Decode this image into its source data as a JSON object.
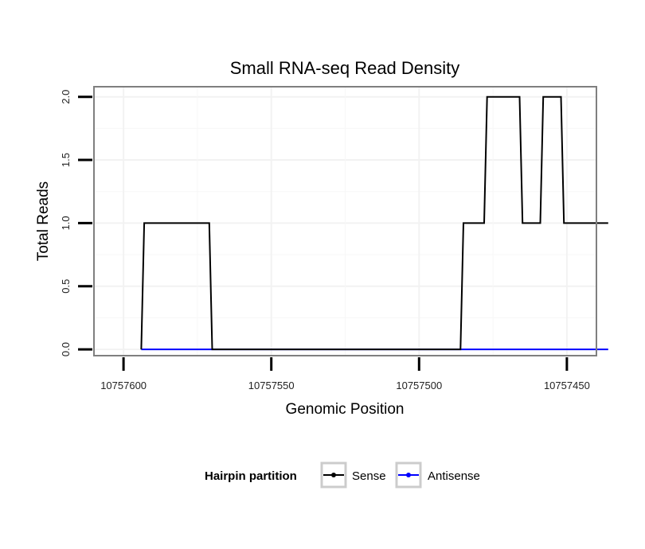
{
  "chart_data": {
    "type": "line",
    "title": "Small RNA-seq Read Density",
    "xlabel": "Genomic Position",
    "ylabel": "Total Reads",
    "x_reversed": true,
    "xlim": [
      10757610,
      10757440
    ],
    "ylim": [
      -0.05,
      2.08
    ],
    "x_ticks": [
      10757600,
      10757550,
      10757500,
      10757450
    ],
    "x_tick_labels": [
      "10757600",
      "10757550",
      "10757500",
      "10757450"
    ],
    "y_ticks": [
      0,
      0.5,
      1,
      1.5,
      2
    ],
    "y_tick_labels": [
      "0.0",
      "0.5",
      "1.0",
      "1.5",
      "2.0"
    ],
    "grid": true,
    "legend": {
      "title": "Hairpin partition",
      "position": "bottom",
      "entries": [
        "Sense",
        "Antisense"
      ]
    },
    "series": [
      {
        "name": "Sense",
        "color": "#000000",
        "x": [
          10757594,
          10757593,
          10757571,
          10757570,
          10757486,
          10757485,
          10757478,
          10757477,
          10757466,
          10757465,
          10757459,
          10757458,
          10757452,
          10757451,
          10757436
        ],
        "y": [
          0,
          1,
          1,
          0,
          0,
          1,
          1,
          2,
          2,
          1,
          1,
          2,
          2,
          1,
          1
        ]
      },
      {
        "name": "Antisense",
        "color": "#0000ff",
        "x": [
          10757594,
          10757436
        ],
        "y": [
          0,
          0
        ]
      }
    ]
  }
}
